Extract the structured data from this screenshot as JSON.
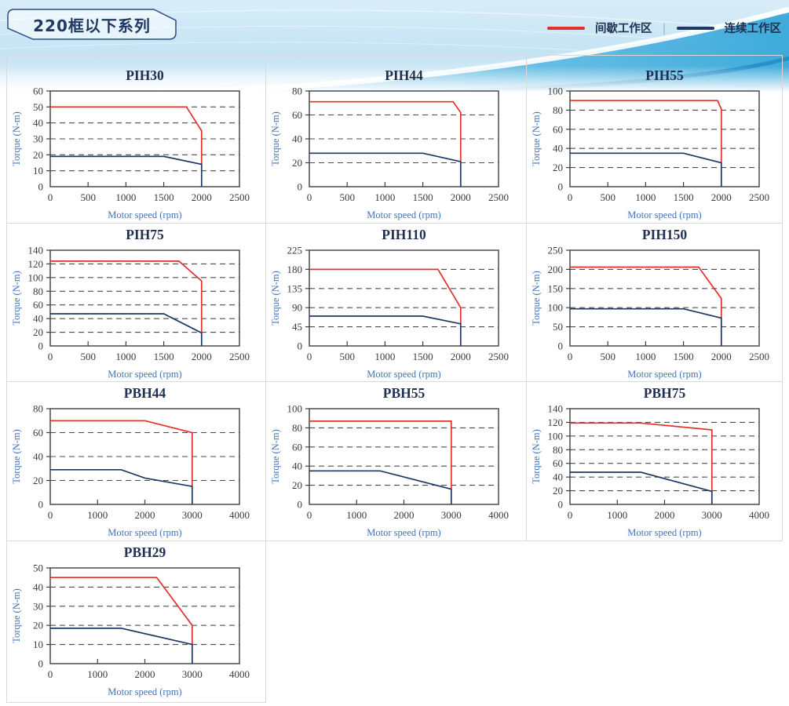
{
  "header": {
    "series_title": "220框以下系列",
    "legend": {
      "items": [
        {
          "key": "intermittent",
          "label": "间歇工作区",
          "color": "#e0312a"
        },
        {
          "key": "continuous",
          "label": "连续工作区",
          "color": "#1f3864"
        }
      ],
      "separator": "|"
    }
  },
  "axis": {
    "xlabel": "Motor speed (rpm)",
    "ylabel": "Torque (N-m)"
  },
  "colors": {
    "intermittent": "#e0312a",
    "continuous": "#1f3864",
    "grid": "#4d4d4d",
    "frame": "#3f3f3f",
    "tick_text": "#3b3b3b",
    "axis_label": "#4273b9",
    "title_text": "#1f3050",
    "tile_border": "#d9d9d9"
  },
  "chart_data": [
    {
      "type": "line",
      "title": "PIH30",
      "xlabel": "Motor speed (rpm)",
      "ylabel": "Torque (N-m)",
      "xlim": [
        0,
        2500
      ],
      "ylim": [
        0,
        60
      ],
      "xticks": [
        0,
        500,
        1000,
        1500,
        2000,
        2500
      ],
      "yticks": [
        0,
        10,
        20,
        30,
        40,
        50,
        60
      ],
      "grid": true,
      "series": [
        {
          "name": "间歇工作区",
          "key": "intermittent",
          "points": [
            [
              0,
              50
            ],
            [
              1800,
              50
            ],
            [
              2000,
              35
            ],
            [
              2000,
              14
            ]
          ]
        },
        {
          "name": "连续工作区",
          "key": "continuous",
          "points": [
            [
              0,
              19
            ],
            [
              1500,
              19
            ],
            [
              2000,
              14
            ],
            [
              2000,
              0
            ]
          ]
        }
      ]
    },
    {
      "type": "line",
      "title": "PIH44",
      "xlabel": "Motor speed (rpm)",
      "ylabel": "Torque (N-m)",
      "xlim": [
        0,
        2500
      ],
      "ylim": [
        0,
        80
      ],
      "xticks": [
        0,
        500,
        1000,
        1500,
        2000,
        2500
      ],
      "yticks": [
        0,
        20,
        40,
        60,
        80
      ],
      "grid": true,
      "series": [
        {
          "name": "间歇工作区",
          "key": "intermittent",
          "points": [
            [
              0,
              71
            ],
            [
              1900,
              71
            ],
            [
              2000,
              62
            ],
            [
              2000,
              21
            ]
          ]
        },
        {
          "name": "连续工作区",
          "key": "continuous",
          "points": [
            [
              0,
              28
            ],
            [
              1500,
              28
            ],
            [
              2000,
              21
            ],
            [
              2000,
              0
            ]
          ]
        }
      ]
    },
    {
      "type": "line",
      "title": "PIH55",
      "xlabel": "Motor speed (rpm)",
      "ylabel": "Torque (N-m)",
      "xlim": [
        0,
        2500
      ],
      "ylim": [
        0,
        100
      ],
      "xticks": [
        0,
        500,
        1000,
        1500,
        2000,
        2500
      ],
      "yticks": [
        0,
        20,
        40,
        60,
        80,
        100
      ],
      "grid": true,
      "series": [
        {
          "name": "间歇工作区",
          "key": "intermittent",
          "points": [
            [
              0,
              90
            ],
            [
              1950,
              90
            ],
            [
              2000,
              81
            ],
            [
              2000,
              25
            ]
          ]
        },
        {
          "name": "连续工作区",
          "key": "continuous",
          "points": [
            [
              0,
              35
            ],
            [
              1500,
              35
            ],
            [
              2000,
              25
            ],
            [
              2000,
              0
            ]
          ]
        }
      ]
    },
    {
      "type": "line",
      "title": "PIH75",
      "xlabel": "Motor speed (rpm)",
      "ylabel": "Torque (N-m)",
      "xlim": [
        0,
        2500
      ],
      "ylim": [
        0,
        140
      ],
      "xticks": [
        0,
        500,
        1000,
        1500,
        2000,
        2500
      ],
      "yticks": [
        0,
        20,
        40,
        60,
        80,
        100,
        120,
        140
      ],
      "grid": true,
      "series": [
        {
          "name": "间歇工作区",
          "key": "intermittent",
          "points": [
            [
              0,
              124
            ],
            [
              1700,
              124
            ],
            [
              2000,
              95
            ],
            [
              2000,
              19
            ]
          ]
        },
        {
          "name": "连续工作区",
          "key": "continuous",
          "points": [
            [
              0,
              47
            ],
            [
              1500,
              47
            ],
            [
              2000,
              19
            ],
            [
              2000,
              0
            ]
          ]
        }
      ]
    },
    {
      "type": "line",
      "title": "PIH110",
      "xlabel": "Motor speed (rpm)",
      "ylabel": "Torque (N-m)",
      "xlim": [
        0,
        2500
      ],
      "ylim": [
        0,
        225
      ],
      "xticks": [
        0,
        500,
        1000,
        1500,
        2000,
        2500
      ],
      "yticks": [
        0,
        45,
        90,
        135,
        180,
        225
      ],
      "grid": true,
      "series": [
        {
          "name": "间歇工作区",
          "key": "intermittent",
          "points": [
            [
              0,
              180
            ],
            [
              1700,
              180
            ],
            [
              2000,
              90
            ],
            [
              2000,
              52
            ]
          ]
        },
        {
          "name": "连续工作区",
          "key": "continuous",
          "points": [
            [
              0,
              70
            ],
            [
              1500,
              70
            ],
            [
              2000,
              52
            ],
            [
              2000,
              0
            ]
          ]
        }
      ]
    },
    {
      "type": "line",
      "title": "PIH150",
      "xlabel": "Motor speed (rpm)",
      "ylabel": "Torque (N-m)",
      "xlim": [
        0,
        2500
      ],
      "ylim": [
        0,
        250
      ],
      "xticks": [
        0,
        500,
        1000,
        1500,
        2000,
        2500
      ],
      "yticks": [
        0,
        50,
        100,
        150,
        200,
        250
      ],
      "grid": true,
      "series": [
        {
          "name": "间歇工作区",
          "key": "intermittent",
          "points": [
            [
              0,
              206
            ],
            [
              1700,
              206
            ],
            [
              2000,
              124
            ],
            [
              2000,
              73
            ]
          ]
        },
        {
          "name": "连续工作区",
          "key": "continuous",
          "points": [
            [
              0,
              97
            ],
            [
              1500,
              97
            ],
            [
              2000,
              73
            ],
            [
              2000,
              0
            ]
          ]
        }
      ]
    },
    {
      "type": "line",
      "title": "PBH44",
      "xlabel": "Motor speed (rpm)",
      "ylabel": "Torque (N-m)",
      "xlim": [
        0,
        4000
      ],
      "ylim": [
        0,
        80
      ],
      "xticks": [
        0,
        1000,
        2000,
        3000,
        4000
      ],
      "yticks": [
        0,
        20,
        40,
        60,
        80
      ],
      "grid": true,
      "series": [
        {
          "name": "间歇工作区",
          "key": "intermittent",
          "points": [
            [
              0,
              70
            ],
            [
              2000,
              70
            ],
            [
              3000,
              60
            ],
            [
              3000,
              15
            ]
          ]
        },
        {
          "name": "连续工作区",
          "key": "continuous",
          "points": [
            [
              0,
              29
            ],
            [
              1500,
              29
            ],
            [
              2000,
              22
            ],
            [
              3000,
              15
            ],
            [
              3000,
              0
            ]
          ]
        }
      ]
    },
    {
      "type": "line",
      "title": "PBH55",
      "xlabel": "Motor speed (rpm)",
      "ylabel": "Torque (N-m)",
      "xlim": [
        0,
        4000
      ],
      "ylim": [
        0,
        100
      ],
      "xticks": [
        0,
        1000,
        2000,
        3000,
        4000
      ],
      "yticks": [
        0,
        20,
        40,
        60,
        80,
        100
      ],
      "grid": true,
      "series": [
        {
          "name": "间歇工作区",
          "key": "intermittent",
          "points": [
            [
              0,
              87
            ],
            [
              3000,
              87
            ],
            [
              3000,
              16
            ]
          ]
        },
        {
          "name": "连续工作区",
          "key": "continuous",
          "points": [
            [
              0,
              35
            ],
            [
              1500,
              35
            ],
            [
              3000,
              16
            ],
            [
              3000,
              0
            ]
          ]
        }
      ]
    },
    {
      "type": "line",
      "title": "PBH75",
      "xlabel": "Motor speed (rpm)",
      "ylabel": "Torque (N-m)",
      "xlim": [
        0,
        4000
      ],
      "ylim": [
        0,
        140
      ],
      "xticks": [
        0,
        1000,
        2000,
        3000,
        4000
      ],
      "yticks": [
        0,
        20,
        40,
        60,
        80,
        100,
        120,
        140
      ],
      "grid": true,
      "series": [
        {
          "name": "间歇工作区",
          "key": "intermittent",
          "points": [
            [
              0,
              119
            ],
            [
              1500,
              119
            ],
            [
              3000,
              109
            ],
            [
              3000,
              19
            ]
          ]
        },
        {
          "name": "连续工作区",
          "key": "continuous",
          "points": [
            [
              0,
              47
            ],
            [
              1500,
              47
            ],
            [
              3000,
              19
            ],
            [
              3000,
              0
            ]
          ]
        }
      ]
    },
    {
      "type": "line",
      "title": "PBH29",
      "xlabel": "Motor speed (rpm)",
      "ylabel": "Torque (N-m)",
      "xlim": [
        0,
        4000
      ],
      "ylim": [
        0,
        50
      ],
      "xticks": [
        0,
        1000,
        2000,
        3000,
        4000
      ],
      "yticks": [
        0,
        10,
        20,
        30,
        40,
        50
      ],
      "grid": true,
      "series": [
        {
          "name": "间歇工作区",
          "key": "intermittent",
          "points": [
            [
              0,
              45
            ],
            [
              2250,
              45
            ],
            [
              3000,
              20
            ],
            [
              3000,
              10
            ]
          ]
        },
        {
          "name": "连续工作区",
          "key": "continuous",
          "points": [
            [
              0,
              18.5
            ],
            [
              1500,
              18.5
            ],
            [
              3000,
              10
            ],
            [
              3000,
              0
            ]
          ]
        }
      ]
    }
  ]
}
